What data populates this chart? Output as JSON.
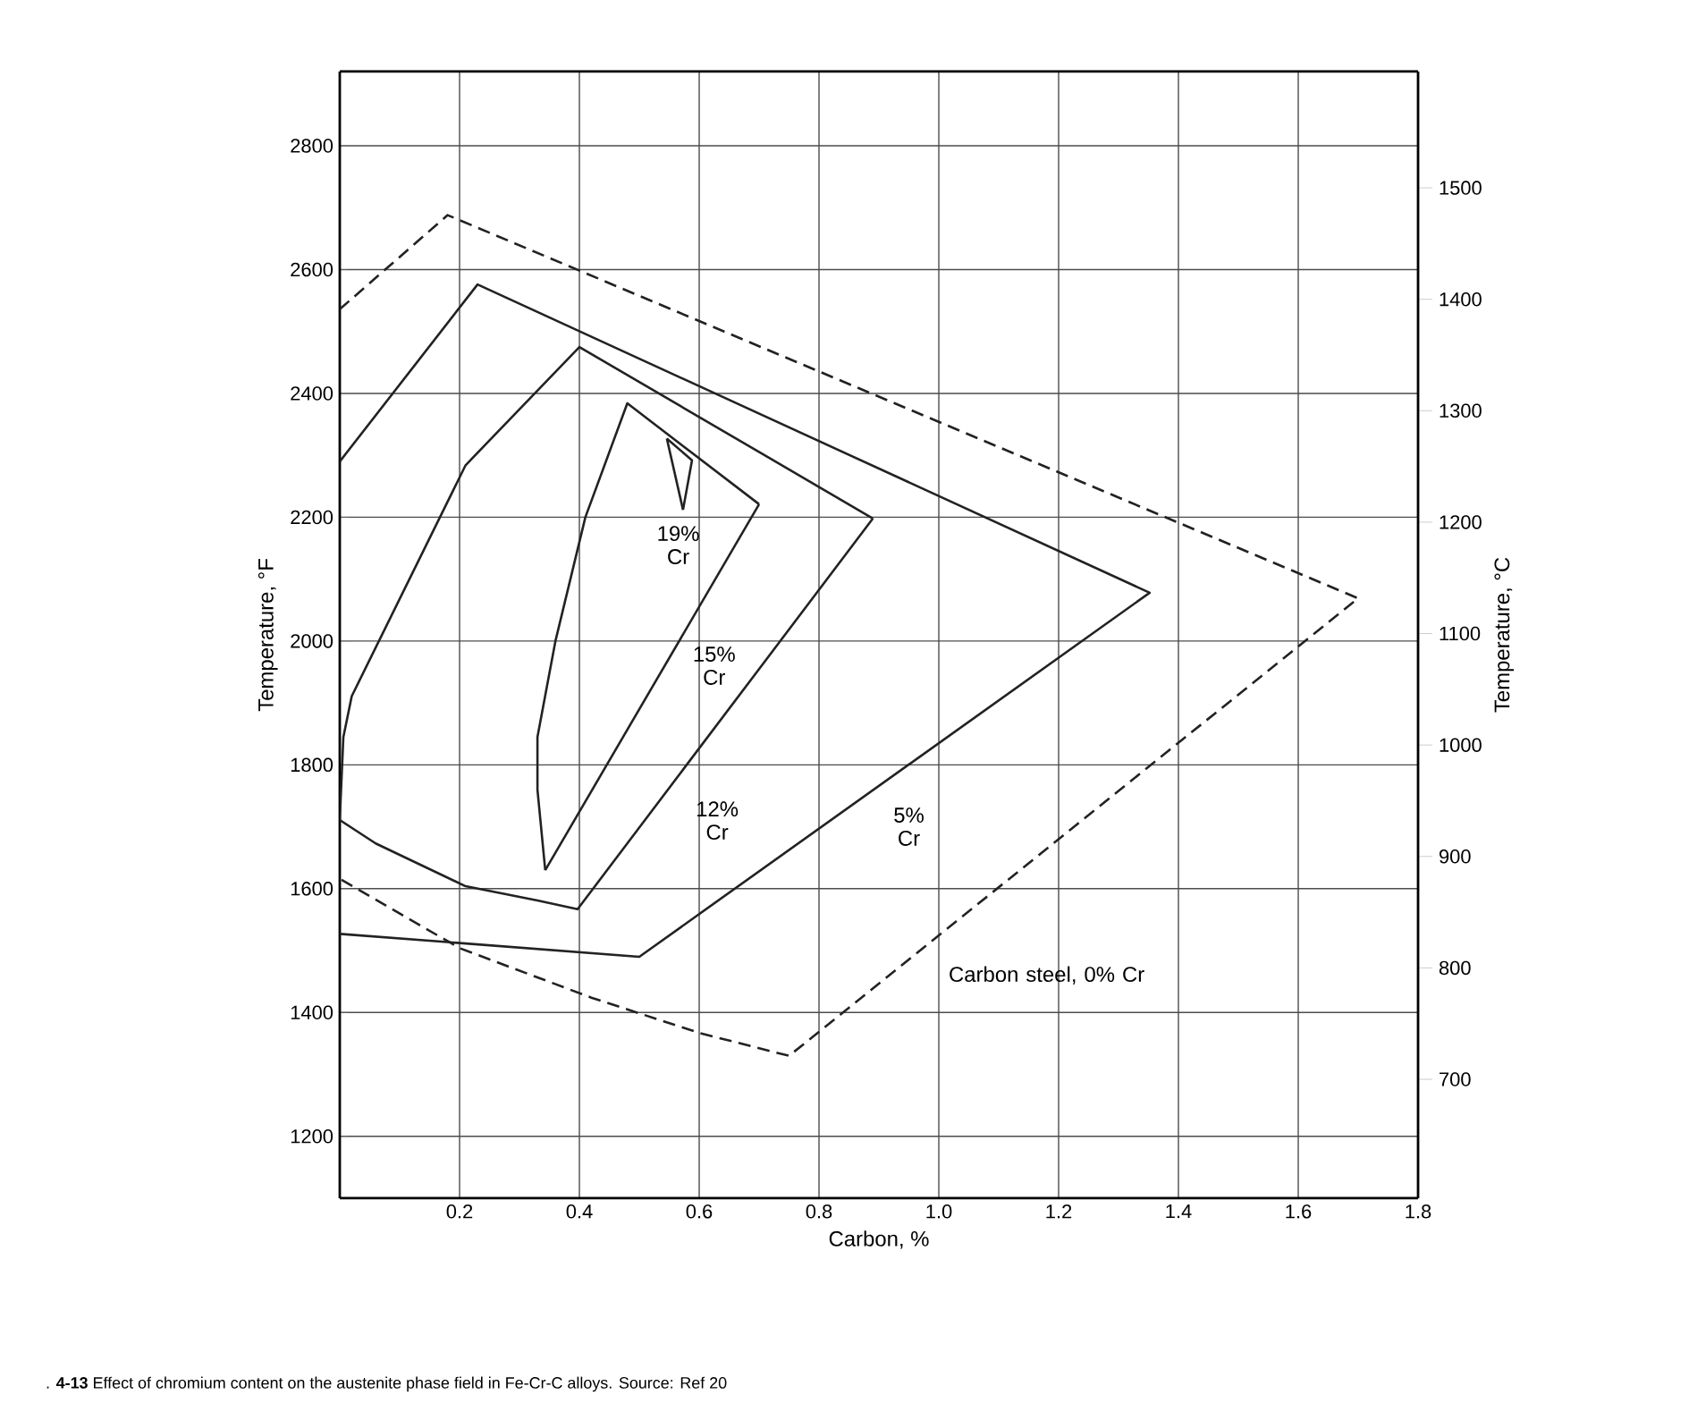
{
  "chart_data": {
    "type": "line",
    "xlabel": "Carbon, %",
    "ylabel": "Temperature, °F",
    "y2label": "Temperature, °C",
    "xlim": [
      0,
      1.8
    ],
    "xticks": [
      0.2,
      0.4,
      0.6,
      0.8,
      {
        "value": 1.0,
        "label": "1.0"
      },
      1.2,
      1.4,
      1.6,
      1.8
    ],
    "ylim": [
      1100,
      2920
    ],
    "yticks": [
      1200,
      1400,
      1600,
      1800,
      2000,
      2200,
      2400,
      2600,
      2800
    ],
    "y2lim": [
      593.3,
      1604.4
    ],
    "y2ticks": [
      700,
      800,
      900,
      1000,
      1100,
      1200,
      1300,
      1400,
      1500
    ],
    "grid": true,
    "series": [
      {
        "name": "Carbon steel, 0% Cr",
        "color": "#222222",
        "line_style": "dashed",
        "x": [
          0,
          0.18,
          1.7,
          0.75,
          0.6,
          0.42,
          0.2,
          0
        ],
        "values": [
          2536,
          2688,
          2069,
          1330,
          1367,
          1424,
          1504,
          1616
        ]
      },
      {
        "name": "5% Cr",
        "color": "#222222",
        "line_style": "solid",
        "x": [
          0,
          0.23,
          1.352,
          0.5,
          0
        ],
        "values": [
          2290,
          2576,
          2078,
          1490,
          1527
        ]
      },
      {
        "name": "12% Cr",
        "color": "#222222",
        "line_style": "solid",
        "x": [
          0.0,
          0.06,
          0.21,
          0.33,
          0.397,
          0.89
        ],
        "values": [
          1711,
          1673,
          1604,
          1581,
          1567,
          2198
        ]
      },
      {
        "name": "15% Cr",
        "color": "#222222",
        "line_style": "solid",
        "x": [
          0.343,
          0.7
        ],
        "values": [
          1630,
          2221
        ]
      },
      {
        "name": "19% Cr",
        "color": "#222222",
        "line_style": "solid",
        "x": [
          0.546,
          0.588,
          0.573
        ],
        "values": [
          2327,
          2292,
          2212
        ]
      },
      {
        "color": "#222222",
        "line_style": "solid",
        "x": [
          0.0,
          0.006,
          0.02,
          0.21,
          0.4,
          0.89
        ],
        "values": [
          1711,
          1845,
          1911,
          2284,
          2475,
          2198
        ]
      },
      {
        "color": "#222222",
        "line_style": "solid",
        "x": [
          0.343,
          0.33,
          0.33,
          0.36,
          0.41,
          0.48,
          0.7
        ],
        "values": [
          1630,
          1760,
          1845,
          2000,
          2200,
          2384,
          2221
        ]
      },
      {
        "color": "#222222",
        "line_style": "solid",
        "x": [
          0.546,
          0.573
        ],
        "values": [
          2327,
          2212
        ]
      }
    ],
    "annotations": [
      ". **4-13** Effect of chromium content on the austenite phase field in Fe-Cr-C alloys. Source: Ref 20"
    ]
  }
}
